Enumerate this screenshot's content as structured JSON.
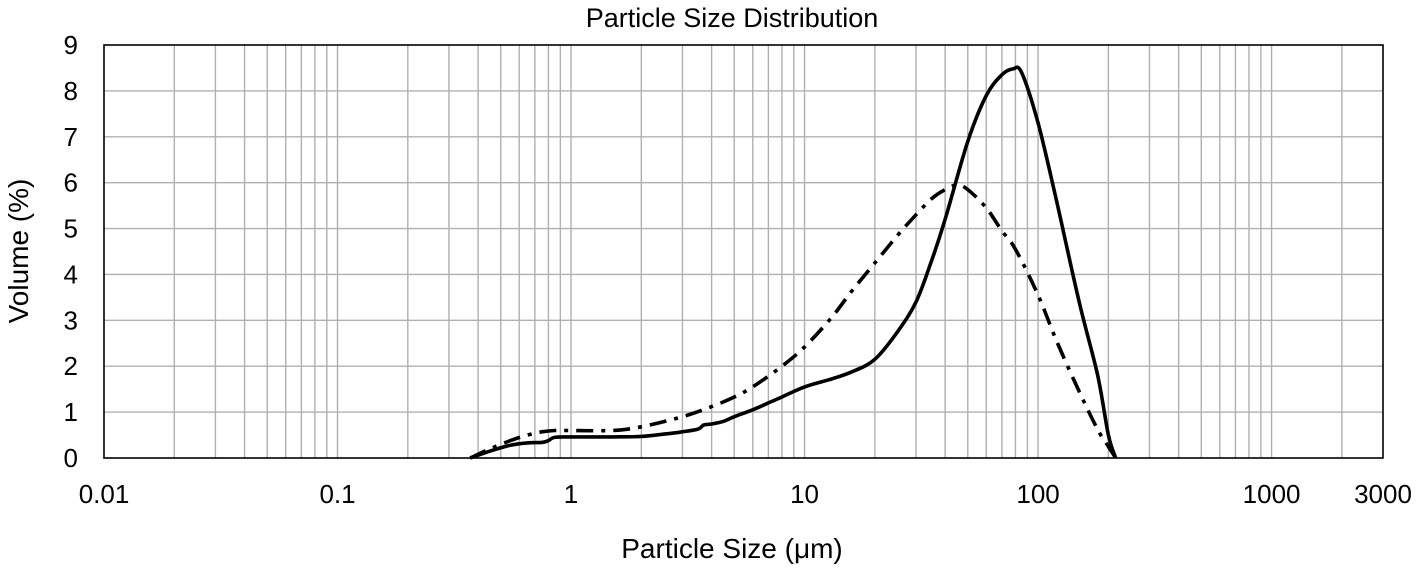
{
  "chart_data": {
    "type": "line",
    "title": "Particle Size Distribution",
    "xlabel": "Particle Size (μm)",
    "ylabel": "Volume (%)",
    "x_scale": "log",
    "xlim": [
      0.01,
      3000
    ],
    "ylim": [
      0,
      9
    ],
    "x_ticks": [
      "0.01",
      "0.1",
      "1",
      "10",
      "100",
      "1000",
      "3000"
    ],
    "y_ticks": [
      "0",
      "1",
      "2",
      "3",
      "4",
      "5",
      "6",
      "7",
      "8",
      "9"
    ],
    "grid": true,
    "series": [
      {
        "style": "solid",
        "color": "#000000",
        "x": [
          0.37,
          0.45,
          0.55,
          0.65,
          0.75,
          0.8,
          0.85,
          1.0,
          1.5,
          2.0,
          2.5,
          3.0,
          3.5,
          3.7,
          4.0,
          4.5,
          5.0,
          6.0,
          7.0,
          8.0,
          10.0,
          13.0,
          16.0,
          20.0,
          25.0,
          30.0,
          35.0,
          40.0,
          50.0,
          60.0,
          70.0,
          78.0,
          85.0,
          100.0,
          120.0,
          150.0,
          180.0,
          200.0,
          215.0
        ],
        "y": [
          0.0,
          0.15,
          0.28,
          0.33,
          0.34,
          0.38,
          0.45,
          0.46,
          0.46,
          0.47,
          0.52,
          0.57,
          0.63,
          0.72,
          0.74,
          0.8,
          0.9,
          1.05,
          1.2,
          1.33,
          1.55,
          1.72,
          1.88,
          2.15,
          2.75,
          3.4,
          4.3,
          5.2,
          6.9,
          7.9,
          8.35,
          8.48,
          8.4,
          7.3,
          5.6,
          3.4,
          1.8,
          0.5,
          0.0
        ]
      },
      {
        "style": "dash-dot",
        "color": "#000000",
        "x": [
          0.37,
          0.45,
          0.55,
          0.65,
          0.75,
          0.85,
          1.0,
          1.5,
          2.0,
          3.0,
          4.0,
          5.0,
          6.0,
          8.0,
          10.0,
          13.0,
          16.0,
          20.0,
          25.0,
          30.0,
          35.0,
          40.0,
          45.0,
          50.0,
          60.0,
          70.0,
          80.0,
          100.0,
          120.0,
          150.0,
          180.0,
          200.0,
          215.0
        ],
        "y": [
          0.0,
          0.2,
          0.38,
          0.5,
          0.57,
          0.6,
          0.6,
          0.6,
          0.68,
          0.9,
          1.12,
          1.33,
          1.55,
          2.0,
          2.42,
          3.05,
          3.65,
          4.25,
          4.85,
          5.3,
          5.65,
          5.85,
          5.95,
          5.85,
          5.45,
          4.95,
          4.55,
          3.55,
          2.55,
          1.45,
          0.62,
          0.25,
          0.0
        ]
      }
    ]
  }
}
